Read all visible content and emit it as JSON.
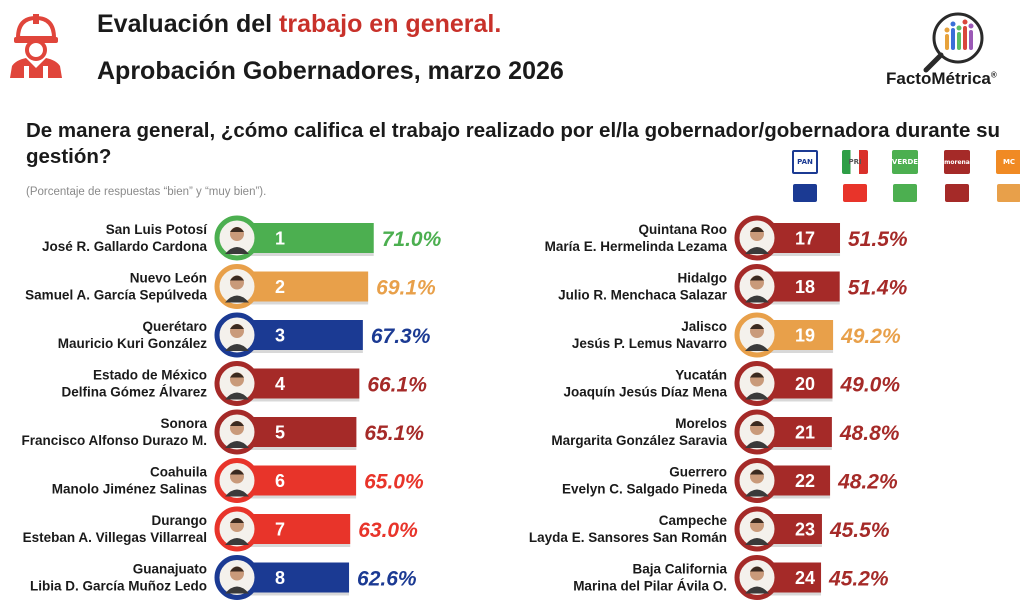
{
  "header": {
    "title_part1": "Evaluación del ",
    "title_accent": "trabajo en general.",
    "subtitle": "Aprobación Gobernadores, marzo 2026",
    "brand": "FactoMétrica",
    "brand_mark": "®",
    "icon": "worker-helmet-icon"
  },
  "question": "De manera general, ¿cómo califica el trabajo realizado por el/la gobernador/gobernadora durante su gestión?",
  "note": "(Porcentaje de respuestas “bien” y “muy bien”).",
  "legend": [
    {
      "party": "PAN",
      "logo_text": "PAN",
      "color": "#1b3a93",
      "logo_color": "#1b3a93"
    },
    {
      "party": "PRI",
      "logo_text": "PRI",
      "color": "#e8342a",
      "logo_color": "#d9302a"
    },
    {
      "party": "PVEM",
      "logo_text": "VERDE",
      "color": "#4caf50",
      "logo_color": "#4caf50"
    },
    {
      "party": "MORENA",
      "logo_text": "morena",
      "color": "#a52a28",
      "logo_color": "#a52a28"
    },
    {
      "party": "MC",
      "logo_text": "MC",
      "color": "#e8a04a",
      "logo_color": "#f08a24"
    }
  ],
  "chart_data": {
    "type": "bar",
    "orientation": "horizontal",
    "unit": "%",
    "rows": [
      {
        "rank": "1",
        "state": "San Luis Potosí",
        "governor": "José R. Gallardo Cardona",
        "value": 71.0,
        "label": "71.0%",
        "party": "PVEM",
        "color": "#4caf50"
      },
      {
        "rank": "2",
        "state": "Nuevo León",
        "governor": "Samuel A. García Sepúlveda",
        "value": 69.1,
        "label": "69.1%",
        "party": "MC",
        "color": "#e8a04a"
      },
      {
        "rank": "3",
        "state": "Querétaro",
        "governor": "Mauricio Kuri González",
        "value": 67.3,
        "label": "67.3%",
        "party": "PAN",
        "color": "#1b3a93"
      },
      {
        "rank": "4",
        "state": "Estado de México",
        "governor": "Delfina Gómez Álvarez",
        "value": 66.1,
        "label": "66.1%",
        "party": "MORENA",
        "color": "#a52a28"
      },
      {
        "rank": "5",
        "state": "Sonora",
        "governor": "Francisco Alfonso Durazo M.",
        "value": 65.1,
        "label": "65.1%",
        "party": "MORENA",
        "color": "#a52a28"
      },
      {
        "rank": "6",
        "state": "Coahuila",
        "governor": "Manolo Jiménez Salinas",
        "value": 65.0,
        "label": "65.0%",
        "party": "PRI",
        "color": "#e8342a"
      },
      {
        "rank": "7",
        "state": "Durango",
        "governor": "Esteban A. Villegas Villarreal",
        "value": 63.0,
        "label": "63.0%",
        "party": "PRI",
        "color": "#e8342a"
      },
      {
        "rank": "8",
        "state": "Guanajuato",
        "governor": "Libia D. García Muñoz Ledo",
        "value": 62.6,
        "label": "62.6%",
        "party": "PAN",
        "color": "#1b3a93"
      },
      {
        "rank": "17",
        "state": "Quintana Roo",
        "governor": "María E. Hermelinda Lezama",
        "value": 51.5,
        "label": "51.5%",
        "party": "MORENA",
        "color": "#a52a28"
      },
      {
        "rank": "18",
        "state": "Hidalgo",
        "governor": "Julio R. Menchaca Salazar",
        "value": 51.4,
        "label": "51.4%",
        "party": "MORENA",
        "color": "#a52a28"
      },
      {
        "rank": "19",
        "state": "Jalisco",
        "governor": "Jesús P. Lemus Navarro",
        "value": 49.2,
        "label": "49.2%",
        "party": "MC",
        "color": "#e8a04a"
      },
      {
        "rank": "20",
        "state": "Yucatán",
        "governor": "Joaquín Jesús Díaz Mena",
        "value": 49.0,
        "label": "49.0%",
        "party": "MORENA",
        "color": "#a52a28"
      },
      {
        "rank": "21",
        "state": "Morelos",
        "governor": "Margarita González Saravia",
        "value": 48.8,
        "label": "48.8%",
        "party": "MORENA",
        "color": "#a52a28"
      },
      {
        "rank": "22",
        "state": "Guerrero",
        "governor": "Evelyn C. Salgado Pineda",
        "value": 48.2,
        "label": "48.2%",
        "party": "MORENA",
        "color": "#a52a28"
      },
      {
        "rank": "23",
        "state": "Campeche",
        "governor": "Layda E. Sansores San Román",
        "value": 45.5,
        "label": "45.5%",
        "party": "MORENA",
        "color": "#a52a28"
      },
      {
        "rank": "24",
        "state": "Baja California",
        "governor": "Marina del Pilar Ávila O.",
        "value": 45.2,
        "label": "45.2%",
        "party": "MORENA",
        "color": "#a52a28"
      }
    ]
  }
}
